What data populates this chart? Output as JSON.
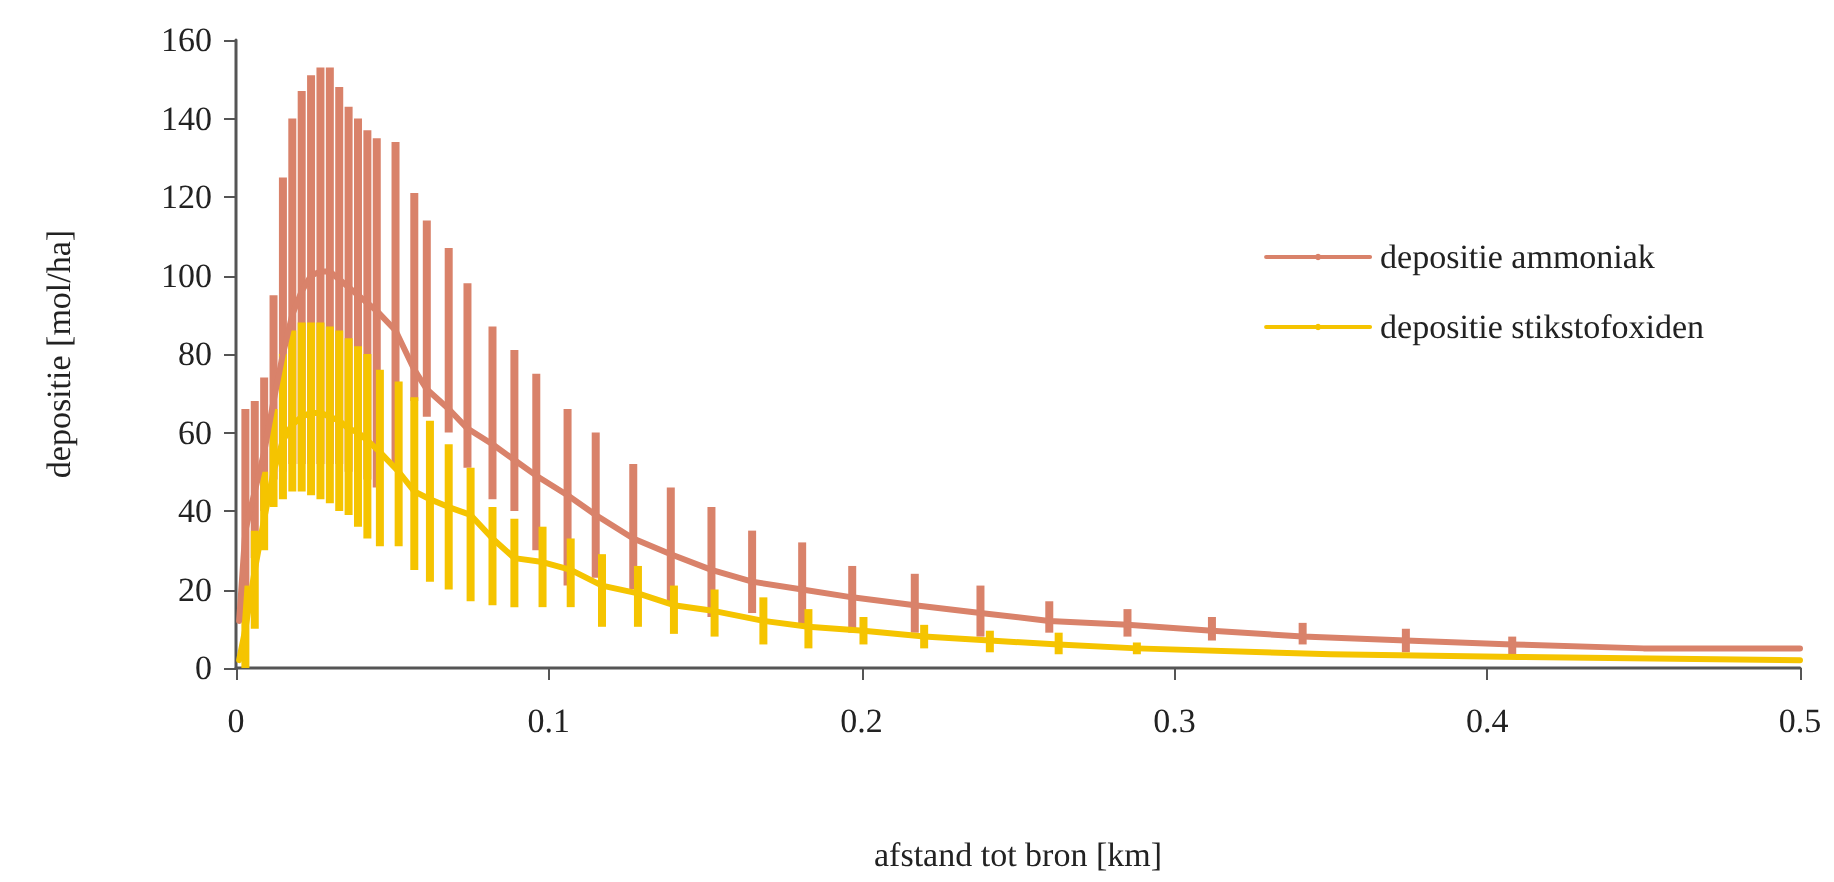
{
  "chart_data": {
    "type": "line",
    "xlabel": "afstand tot bron [km]",
    "ylabel": "depositie [mol/ha]",
    "xlim": [
      0,
      0.5
    ],
    "xticks": [
      0,
      0.1,
      0.2,
      0.3,
      0.4,
      0.5
    ],
    "ylim": [
      0,
      160
    ],
    "yticks": [
      0,
      20,
      40,
      60,
      80,
      100,
      120,
      140,
      160
    ],
    "grid": false,
    "legend": "top right",
    "marker": "none",
    "line_style": "solid",
    "series": [
      {
        "name": "depositie ammoniak",
        "color": "#d9826a",
        "x": [
          0.001,
          0.003,
          0.006,
          0.009,
          0.012,
          0.015,
          0.018,
          0.021,
          0.024,
          0.027,
          0.03,
          0.033,
          0.036,
          0.039,
          0.042,
          0.045,
          0.051,
          0.057,
          0.061,
          0.068,
          0.074,
          0.082,
          0.089,
          0.096,
          0.106,
          0.115,
          0.127,
          0.139,
          0.152,
          0.165,
          0.181,
          0.197,
          0.217,
          0.238,
          0.26,
          0.285,
          0.312,
          0.341,
          0.374,
          0.408,
          0.45,
          0.5
        ],
        "values": [
          12,
          35,
          45,
          55,
          68,
          80,
          90,
          96,
          100,
          101,
          101,
          99,
          97,
          95,
          93,
          91,
          86,
          76,
          71,
          66,
          61,
          57,
          53,
          49,
          44,
          39,
          33,
          29,
          25,
          22,
          20,
          18,
          16,
          14,
          12,
          11,
          9.5,
          8,
          7,
          6,
          5,
          5
        ],
        "errors": [
          null,
          [
            18,
            66
          ],
          [
            28,
            68
          ],
          [
            40,
            74
          ],
          [
            48,
            95
          ],
          [
            50,
            125
          ],
          [
            52,
            140
          ],
          [
            52,
            147
          ],
          [
            52,
            151
          ],
          [
            52,
            153
          ],
          [
            52,
            153
          ],
          [
            52,
            148
          ],
          [
            50,
            143
          ],
          [
            50,
            140
          ],
          [
            48,
            137
          ],
          [
            46,
            135
          ],
          [
            52,
            134
          ],
          [
            68,
            121
          ],
          [
            64,
            114
          ],
          [
            60,
            107
          ],
          [
            51,
            98
          ],
          [
            43,
            87
          ],
          [
            40,
            81
          ],
          [
            30,
            75
          ],
          [
            21,
            66
          ],
          [
            23,
            60
          ],
          [
            20,
            52
          ],
          [
            16,
            46
          ],
          [
            13,
            41
          ],
          [
            14,
            35
          ],
          [
            11,
            32
          ],
          [
            9,
            26
          ],
          [
            9,
            24
          ],
          [
            8,
            21
          ],
          [
            9,
            17
          ],
          [
            8,
            15
          ],
          [
            7,
            13
          ],
          [
            6,
            11.5
          ],
          [
            4,
            10
          ],
          [
            3,
            8
          ],
          null,
          null
        ]
      },
      {
        "name": "depositie stikstofoxiden",
        "color": "#f5c400",
        "x": [
          0.001,
          0.003,
          0.006,
          0.009,
          0.012,
          0.015,
          0.018,
          0.021,
          0.024,
          0.027,
          0.03,
          0.033,
          0.036,
          0.039,
          0.042,
          0.046,
          0.052,
          0.057,
          0.062,
          0.068,
          0.075,
          0.082,
          0.089,
          0.098,
          0.107,
          0.117,
          0.1285,
          0.14,
          0.153,
          0.1686,
          0.183,
          0.2006,
          0.22,
          0.241,
          0.263,
          0.288,
          0.35,
          0.41,
          0.5
        ],
        "values": [
          2,
          10,
          25,
          38,
          50,
          58,
          62,
          64,
          65,
          65,
          64,
          63,
          61,
          60,
          58,
          55,
          50,
          45,
          43,
          41,
          39,
          33,
          28,
          27,
          25,
          21,
          19,
          16,
          14.5,
          12,
          10.5,
          9.5,
          8,
          7,
          6,
          5,
          3.5,
          2.8,
          2
        ],
        "errors": [
          null,
          [
            0,
            21
          ],
          [
            10,
            35
          ],
          [
            30,
            50
          ],
          [
            41,
            66
          ],
          [
            43,
            80
          ],
          [
            45,
            86
          ],
          [
            45,
            88
          ],
          [
            44,
            88
          ],
          [
            43,
            88
          ],
          [
            42,
            87
          ],
          [
            40,
            86
          ],
          [
            39,
            84
          ],
          [
            36,
            82
          ],
          [
            33,
            80
          ],
          [
            31,
            76
          ],
          [
            31,
            73
          ],
          [
            25,
            69
          ],
          [
            22,
            63
          ],
          [
            20,
            57
          ],
          [
            17,
            51
          ],
          [
            16,
            41
          ],
          [
            15.5,
            38
          ],
          [
            15.5,
            36
          ],
          [
            15.5,
            33
          ],
          [
            10.5,
            29
          ],
          [
            10.5,
            26
          ],
          [
            8.7,
            21
          ],
          [
            8,
            20
          ],
          [
            6,
            18
          ],
          [
            5,
            15
          ],
          [
            6,
            13
          ],
          [
            5,
            11
          ],
          [
            4,
            9.5
          ],
          [
            3.5,
            9
          ],
          [
            3.5,
            6.5
          ],
          null,
          null,
          null
        ]
      }
    ]
  }
}
